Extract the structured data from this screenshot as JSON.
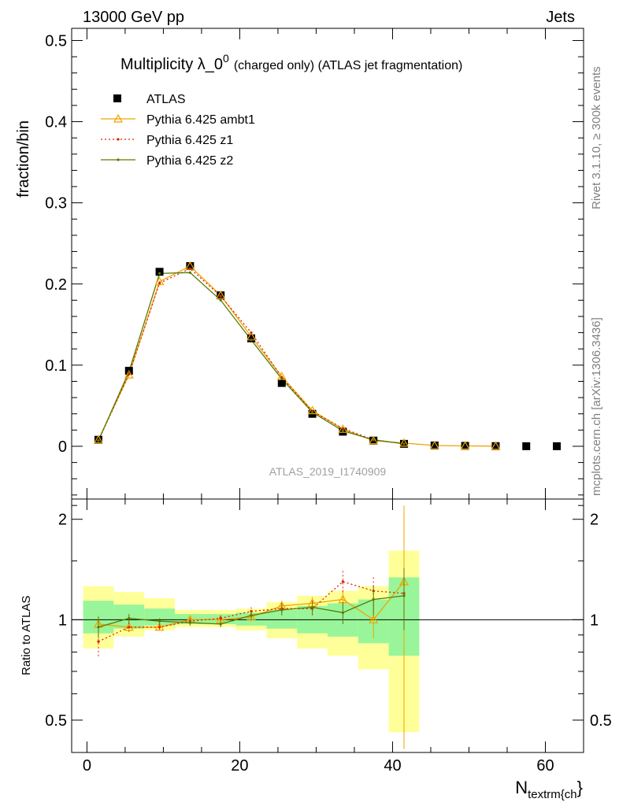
{
  "header": {
    "left": "13000 GeV pp",
    "right": "Jets"
  },
  "side_labels": {
    "rivet": "Rivet 3.1.10, ≥ 300k events",
    "mcplots": "mcplots.cern.ch [arXiv:1306.3436]"
  },
  "chart_data": {
    "type": "line",
    "title": "Multiplicity λ_0",
    "title_superscript": "0",
    "title_suffix": "(charged only) (ATLAS jet fragmentation)",
    "analysis_label": "ATLAS_2019_I1740909",
    "xlabel": "N",
    "xlabel_subscript": "textrm{ch",
    "xlabel_tail": "}",
    "ylabel": "fraction/bin",
    "ratio_ylabel": "Ratio to ATLAS",
    "xlim": [
      -2,
      65
    ],
    "ylim": [
      -0.065,
      0.515
    ],
    "ratio_ylim": [
      0.4,
      2.3
    ],
    "x_ticks": [
      0,
      20,
      40,
      60
    ],
    "x_tick_labels": [
      "0",
      "20",
      "40",
      "60"
    ],
    "y_ticks": [
      0,
      0.1,
      0.2,
      0.3,
      0.4,
      0.5
    ],
    "y_tick_labels": [
      "0",
      "0.1",
      "0.2",
      "0.3",
      "0.4",
      "0.5"
    ],
    "ratio_ticks": [
      0.5,
      1,
      2
    ],
    "ratio_tick_labels": [
      "0.5",
      "1",
      "2"
    ],
    "legend_position": "top-left",
    "data": {
      "name": "ATLAS",
      "x": [
        1.5,
        5.5,
        9.5,
        13.5,
        17.5,
        21.5,
        25.5,
        29.5,
        33.5,
        37.5,
        41.5,
        45.5,
        49.5,
        53.5,
        57.5,
        61.5
      ],
      "y": [
        0.008,
        0.093,
        0.215,
        0.222,
        0.186,
        0.133,
        0.078,
        0.04,
        0.018,
        0.007,
        0.003,
        0.001,
        0.0005,
        0.0002,
        0.0001,
        0.0001
      ]
    },
    "bands": {
      "x_low": [
        -0.5,
        3.5,
        7.5,
        11.5,
        15.5,
        19.5,
        23.5,
        27.5,
        31.5,
        35.5,
        39.5
      ],
      "x_high": [
        3.5,
        7.5,
        11.5,
        15.5,
        19.5,
        23.5,
        27.5,
        31.5,
        35.5,
        39.5,
        43.5
      ],
      "outer_low": [
        0.82,
        0.89,
        0.93,
        0.95,
        0.95,
        0.93,
        0.88,
        0.82,
        0.78,
        0.71,
        0.46
      ],
      "outer_high": [
        1.26,
        1.21,
        1.16,
        1.07,
        1.07,
        1.08,
        1.13,
        1.18,
        1.22,
        1.26,
        1.61
      ],
      "inner_low": [
        0.91,
        0.94,
        0.96,
        0.97,
        0.97,
        0.96,
        0.94,
        0.91,
        0.89,
        0.85,
        0.78
      ],
      "inner_high": [
        1.14,
        1.11,
        1.08,
        1.04,
        1.04,
        1.05,
        1.07,
        1.1,
        1.12,
        1.15,
        1.34
      ]
    },
    "series": [
      {
        "name": "Pythia 6.425 ambt1",
        "color": "#f0a400",
        "style": "solid",
        "marker": "triangle",
        "x": [
          1.5,
          5.5,
          9.5,
          13.5,
          17.5,
          21.5,
          25.5,
          29.5,
          33.5,
          37.5,
          41.5,
          45.5,
          49.5,
          53.5
        ],
        "y": [
          0.008,
          0.088,
          0.203,
          0.222,
          0.186,
          0.135,
          0.086,
          0.044,
          0.021,
          0.007,
          0.004,
          0.001,
          0.0005,
          0.0002
        ],
        "ratio_x": [
          1.5,
          5.5,
          9.5,
          13.5,
          17.5,
          21.5,
          25.5,
          29.5,
          33.5,
          37.5,
          41.5
        ],
        "ratio": [
          0.97,
          0.95,
          0.95,
          1.0,
          1.0,
          1.02,
          1.1,
          1.12,
          1.15,
          1.0,
          1.3
        ],
        "ratio_err": [
          0.06,
          0.03,
          0.02,
          0.02,
          0.02,
          0.03,
          0.04,
          0.05,
          0.08,
          0.12,
          0.9
        ]
      },
      {
        "name": "Pythia 6.425 z1",
        "color": "#e02000",
        "style": "dotted",
        "marker": "dot",
        "x": [
          1.5,
          5.5,
          9.5,
          13.5,
          17.5,
          21.5,
          25.5,
          29.5,
          33.5,
          37.5,
          41.5
        ],
        "y": [
          0.007,
          0.089,
          0.201,
          0.219,
          0.185,
          0.14,
          0.085,
          0.043,
          0.022,
          0.008,
          0.003
        ],
        "ratio_x": [
          1.5,
          5.5,
          9.5,
          13.5,
          17.5,
          21.5,
          25.5,
          29.5,
          33.5,
          37.5,
          41.5
        ],
        "ratio": [
          0.86,
          0.95,
          0.95,
          0.99,
          1.01,
          1.06,
          1.08,
          1.08,
          1.3,
          1.22,
          1.2
        ],
        "ratio_err": [
          0.09,
          0.03,
          0.02,
          0.02,
          0.02,
          0.03,
          0.04,
          0.05,
          0.1,
          0.12,
          0.2
        ]
      },
      {
        "name": "Pythia 6.425 z2",
        "color": "#5a7a00",
        "style": "solid",
        "marker": "dot",
        "x": [
          1.5,
          5.5,
          9.5,
          13.5,
          17.5,
          21.5,
          25.5,
          29.5,
          33.5,
          37.5,
          41.5
        ],
        "y": [
          0.007,
          0.092,
          0.213,
          0.214,
          0.18,
          0.131,
          0.083,
          0.042,
          0.019,
          0.008,
          0.003
        ],
        "ratio_x": [
          1.5,
          5.5,
          9.5,
          13.5,
          17.5,
          21.5,
          25.5,
          29.5,
          33.5,
          37.5,
          41.5
        ],
        "ratio": [
          0.95,
          1.01,
          0.99,
          0.98,
          0.97,
          1.03,
          1.07,
          1.09,
          1.05,
          1.15,
          1.18
        ],
        "ratio_err": [
          0.07,
          0.03,
          0.02,
          0.02,
          0.02,
          0.03,
          0.04,
          0.05,
          0.08,
          0.12,
          0.25
        ]
      }
    ]
  },
  "colors": {
    "band_outer": "#ffff99",
    "band_inner": "#99f599",
    "data_marker": "#000000",
    "label_grey": "#808080"
  }
}
